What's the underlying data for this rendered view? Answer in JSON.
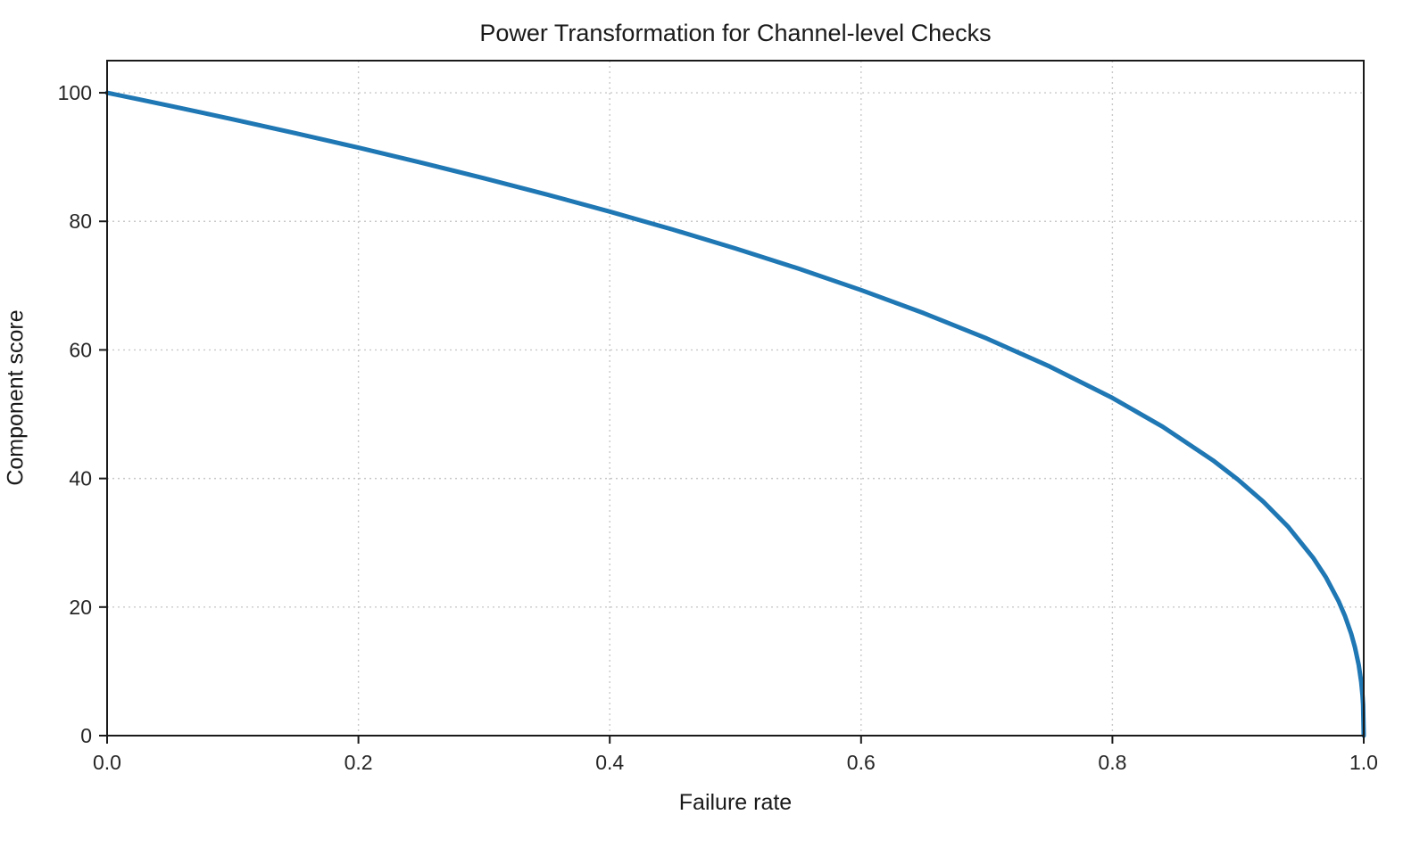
{
  "chart_data": {
    "type": "line",
    "title": "Power Transformation for Channel-level Checks",
    "xlabel": "Failure rate",
    "ylabel": "Component score",
    "xlim": [
      0.0,
      1.0
    ],
    "ylim": [
      0,
      105
    ],
    "xticks": [
      0.0,
      0.2,
      0.4,
      0.6,
      0.8,
      1.0
    ],
    "xtick_labels": [
      "0.0",
      "0.2",
      "0.4",
      "0.6",
      "0.8",
      "1.0"
    ],
    "yticks": [
      0,
      20,
      40,
      60,
      80,
      100
    ],
    "ytick_labels": [
      "0",
      "20",
      "40",
      "60",
      "80",
      "100"
    ],
    "grid": true,
    "grid_style": "dotted",
    "grid_color": "#c9c9c9",
    "line_color": "#1f77b4",
    "line_width": 5,
    "legend": "none",
    "series": [
      {
        "name": "component-score-curve",
        "x": [
          0.0,
          0.025,
          0.05,
          0.075,
          0.1,
          0.15,
          0.2,
          0.25,
          0.3,
          0.35,
          0.4,
          0.45,
          0.5,
          0.55,
          0.6,
          0.65,
          0.7,
          0.75,
          0.8,
          0.84,
          0.88,
          0.9,
          0.92,
          0.94,
          0.96,
          0.97,
          0.98,
          0.985,
          0.99,
          0.993,
          0.996,
          0.998,
          0.999,
          0.9995,
          1.0
        ],
        "y": [
          100.0,
          98.99,
          97.97,
          96.93,
          95.87,
          93.71,
          91.46,
          89.13,
          86.7,
          84.17,
          81.52,
          78.73,
          75.79,
          72.66,
          69.31,
          65.71,
          61.78,
          57.43,
          52.53,
          48.05,
          42.82,
          39.81,
          36.41,
          32.45,
          27.59,
          24.6,
          20.91,
          18.64,
          15.85,
          13.74,
          10.99,
          8.33,
          6.31,
          4.78,
          0.0
        ]
      }
    ]
  }
}
